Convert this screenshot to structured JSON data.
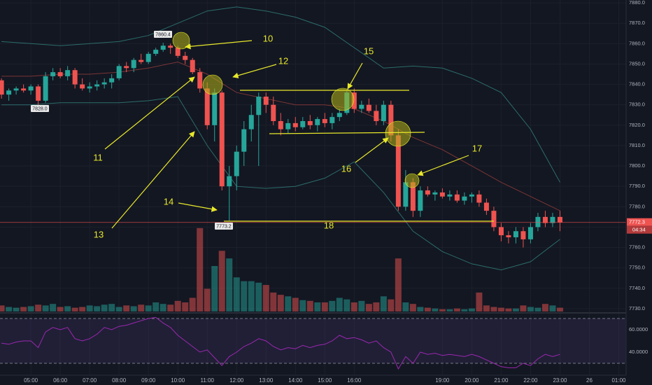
{
  "chart_data": {
    "type": "candlestick",
    "x": [
      4,
      4.25,
      4.5,
      4.75,
      5,
      5.25,
      5.5,
      5.75,
      6,
      6.25,
      6.5,
      6.75,
      7,
      7.25,
      7.5,
      7.75,
      8,
      8.25,
      8.5,
      8.75,
      9,
      9.25,
      9.5,
      9.75,
      10,
      10.25,
      10.5,
      10.75,
      11,
      11.25,
      11.5,
      11.75,
      12,
      12.25,
      12.5,
      12.75,
      13,
      13.25,
      13.5,
      13.75,
      14,
      14.25,
      14.5,
      14.75,
      15,
      15.25,
      15.5,
      15.75,
      16,
      16.25,
      16.5,
      16.75,
      17,
      17.25,
      17.5,
      17.75,
      18,
      18.25,
      18.5,
      18.75,
      19,
      19.25,
      19.5,
      19.75,
      20,
      20.25,
      20.5,
      20.75,
      21,
      21.25,
      21.5,
      21.75,
      22,
      22.25,
      22.5,
      22.75,
      23
    ],
    "open": [
      7842,
      7835,
      7837,
      7838,
      7837,
      7839,
      7832,
      7844,
      7846,
      7844,
      7847,
      7840,
      7838,
      7839,
      7840,
      7841,
      7843,
      7849,
      7848,
      7852,
      7851,
      7855,
      7857,
      7859,
      7858,
      7854,
      7852,
      7846,
      7838,
      7820,
      7836,
      7790,
      7795,
      7807,
      7818,
      7825,
      7834,
      7830,
      7822,
      7818,
      7821,
      7819,
      7822,
      7820,
      7823,
      7821,
      7824,
      7826,
      7836,
      7828,
      7830,
      7827,
      7822,
      7830,
      7815,
      7780,
      7792,
      7778,
      7788,
      7786,
      7787,
      7785,
      7786,
      7783,
      7785,
      7786,
      7782,
      7778,
      7770,
      7766,
      7765,
      7768,
      7764,
      7770,
      7775,
      7772,
      7775
    ],
    "high": [
      7843,
      7838,
      7839,
      7840,
      7840,
      7840,
      7846,
      7848,
      7848,
      7849,
      7848,
      7843,
      7841,
      7842,
      7843,
      7845,
      7850,
      7851,
      7853,
      7855,
      7856,
      7858,
      7860.4,
      7860,
      7859,
      7856,
      7853,
      7848,
      7841,
      7838,
      7837,
      7800,
      7810,
      7822,
      7830,
      7836,
      7836,
      7834,
      7826,
      7823,
      7824,
      7824,
      7825,
      7824,
      7826,
      7826,
      7828,
      7837,
      7838,
      7832,
      7833,
      7830,
      7832,
      7832,
      7818,
      7798,
      7794,
      7790,
      7790,
      7788,
      7789,
      7788,
      7788,
      7787,
      7787,
      7788,
      7784,
      7780,
      7772,
      7768,
      7770,
      7770,
      7772,
      7777,
      7778,
      7777,
      7778
    ],
    "low": [
      7833,
      7832,
      7835,
      7836,
      7835,
      7828,
      7831,
      7842,
      7843,
      7842,
      7838,
      7837,
      7836,
      7837,
      7838,
      7838,
      7842,
      7846,
      7846,
      7850,
      7850,
      7854,
      7856,
      7855,
      7853,
      7850,
      7845,
      7836,
      7818,
      7812,
      7788,
      7773.2,
      7788,
      7800,
      7812,
      7800,
      7826,
      7820,
      7815,
      7816,
      7817,
      7818,
      7818,
      7817,
      7819,
      7818,
      7822,
      7825,
      7826,
      7826,
      7826,
      7820,
      7820,
      7812,
      7778,
      7778,
      7775,
      7775,
      7785,
      7783,
      7784,
      7783,
      7782,
      7781,
      7782,
      7780,
      7776,
      7768,
      7763,
      7762,
      7762,
      7760,
      7762,
      7768,
      7770,
      7770,
      7768
    ],
    "close": [
      7835,
      7837,
      7838,
      7837,
      7839,
      7832,
      7844,
      7846,
      7844,
      7847,
      7840,
      7838,
      7839,
      7840,
      7841,
      7843,
      7849,
      7848,
      7852,
      7851,
      7855,
      7857,
      7859,
      7858,
      7854,
      7852,
      7846,
      7838,
      7820,
      7836,
      7790,
      7795,
      7807,
      7818,
      7825,
      7834,
      7830,
      7822,
      7818,
      7821,
      7819,
      7822,
      7820,
      7823,
      7821,
      7824,
      7826,
      7836,
      7828,
      7830,
      7827,
      7822,
      7830,
      7815,
      7780,
      7792,
      7778,
      7788,
      7786,
      7787,
      7785,
      7786,
      7783,
      7785,
      7786,
      7782,
      7778,
      7770,
      7766,
      7765,
      7768,
      7764,
      7770,
      7775,
      7772,
      7775,
      7772.3
    ],
    "up_color": "#26a69a",
    "down_color": "#ef5350",
    "xlim": [
      3.95,
      25.25
    ],
    "xticks": [
      {
        "value": 5,
        "label": "05:00"
      },
      {
        "value": 6,
        "label": "06:00"
      },
      {
        "value": 7,
        "label": "07:00"
      },
      {
        "value": 8,
        "label": "08:00"
      },
      {
        "value": 9,
        "label": "09:00"
      },
      {
        "value": 10,
        "label": "10:00"
      },
      {
        "value": 11,
        "label": "11:00"
      },
      {
        "value": 12,
        "label": "12:00"
      },
      {
        "value": 13,
        "label": "13:00"
      },
      {
        "value": 14,
        "label": "14:00"
      },
      {
        "value": 15,
        "label": "15:00"
      },
      {
        "value": 16,
        "label": "16:00"
      },
      {
        "value": 19,
        "label": "19:00"
      },
      {
        "value": 20,
        "label": "20:00"
      },
      {
        "value": 21,
        "label": "21:00"
      },
      {
        "value": 22,
        "label": "22:00"
      },
      {
        "value": 23,
        "label": "23:00"
      },
      {
        "value": 24,
        "label": "26"
      },
      {
        "value": 25,
        "label": "01:00"
      }
    ],
    "ylim": [
      7728.6,
      7881.4
    ],
    "yticks": [
      {
        "value": 7730,
        "label": "7730.0"
      },
      {
        "value": 7740,
        "label": "7740.0"
      },
      {
        "value": 7750,
        "label": "7750.0"
      },
      {
        "value": 7760,
        "label": "7760.0"
      },
      {
        "value": 7770,
        "label": "7770.0"
      },
      {
        "value": 7780,
        "label": "7780.0"
      },
      {
        "value": 7790,
        "label": "7790.0"
      },
      {
        "value": 7800,
        "label": "7800.0"
      },
      {
        "value": 7810,
        "label": "7810.0"
      },
      {
        "value": 7820,
        "label": "7820.0"
      },
      {
        "value": 7830,
        "label": "7830.0"
      },
      {
        "value": 7840,
        "label": "7840.0"
      },
      {
        "value": 7850,
        "label": "7850.0"
      },
      {
        "value": 7860,
        "label": "7860.0"
      },
      {
        "value": 7870,
        "label": "7870.0"
      },
      {
        "value": 7880,
        "label": "7880.0"
      }
    ],
    "grid": true,
    "bands": {
      "x": [
        4,
        5,
        6,
        7,
        8,
        9,
        10,
        11,
        12,
        13,
        14,
        15,
        16,
        17,
        18,
        19,
        20,
        21,
        22,
        23
      ],
      "upper": [
        7861,
        7860,
        7859,
        7860,
        7861,
        7864,
        7870,
        7876,
        7878,
        7876,
        7873,
        7868,
        7858,
        7848,
        7849,
        7848,
        7843,
        7836,
        7818,
        7792
      ],
      "middle": [
        7844,
        7844,
        7845,
        7845,
        7846,
        7848,
        7851,
        7845,
        7836,
        7833,
        7830,
        7830,
        7828,
        7822,
        7814,
        7808,
        7800,
        7792,
        7785,
        7778
      ],
      "lower": [
        7830,
        7830,
        7831,
        7831,
        7831,
        7832,
        7834,
        7810,
        7790,
        7789,
        7790,
        7794,
        7802,
        7787,
        7768,
        7758,
        7752,
        7749,
        7753,
        7764
      ],
      "color": "#2b6d6b",
      "middle_color": "#7a3535"
    },
    "volume": {
      "values": [
        8,
        6,
        5,
        6,
        7,
        9,
        8,
        10,
        6,
        7,
        5,
        6,
        8,
        7,
        9,
        10,
        6,
        8,
        7,
        9,
        8,
        12,
        10,
        9,
        14,
        12,
        18,
        110,
        30,
        60,
        80,
        70,
        45,
        40,
        40,
        38,
        35,
        25,
        22,
        20,
        18,
        15,
        14,
        12,
        12,
        14,
        18,
        16,
        12,
        14,
        10,
        12,
        20,
        16,
        70,
        12,
        10,
        6,
        5,
        4,
        3,
        3,
        4,
        3,
        4,
        25,
        8,
        6,
        5,
        4,
        4,
        8,
        6,
        5,
        10,
        8,
        5
      ],
      "ylim": [
        0,
        120
      ]
    },
    "rsi": {
      "values": [
        48,
        47,
        49,
        50,
        50,
        44,
        58,
        62,
        60,
        62,
        52,
        50,
        52,
        56,
        62,
        60,
        63,
        64,
        66,
        68,
        70,
        71,
        66,
        62,
        55,
        50,
        45,
        40,
        42,
        35,
        28,
        36,
        40,
        45,
        48,
        52,
        50,
        45,
        42,
        44,
        43,
        46,
        44,
        46,
        47,
        50,
        55,
        52,
        53,
        51,
        48,
        50,
        44,
        40,
        25,
        36,
        30,
        40,
        38,
        39,
        37,
        38,
        37,
        36,
        38,
        36,
        33,
        30,
        27,
        26,
        26,
        30,
        28,
        34,
        38,
        36,
        38
      ],
      "ylim": [
        20,
        73.75
      ],
      "yticks": [
        {
          "value": 60,
          "label": "60.0000"
        },
        {
          "value": 40,
          "label": "40.0000"
        }
      ],
      "levels": [
        30,
        70
      ],
      "color": "#9c27b0"
    },
    "extreme_labels": [
      "7860.4",
      "7828.0",
      "7773.2"
    ],
    "last_price_label": "7772.3",
    "countdown": "04:34",
    "annotations": [
      "10",
      "11",
      "12",
      "13",
      "14",
      "15",
      "16",
      "17",
      "18"
    ]
  }
}
